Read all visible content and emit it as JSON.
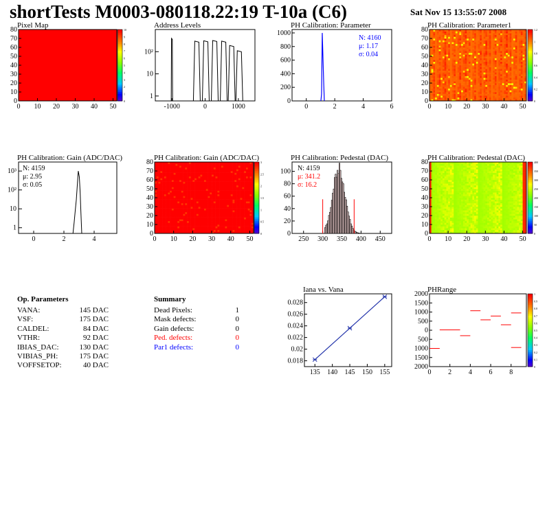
{
  "header": {
    "title": "shortTests M0003-080118.22:19 T-10a (C6)",
    "date": "Sat Nov 15 13:55:07 2008"
  },
  "colors": {
    "frame": "#000000",
    "red": "#ff0000",
    "blue": "#0000ff",
    "yellow_green": "#e6ff00",
    "line_blue": "#2233aa"
  },
  "chart_data": [
    {
      "id": "pixel_map",
      "type": "heatmap",
      "title": "Pixel Map",
      "xlim": [
        0,
        52
      ],
      "ylim": [
        0,
        80
      ],
      "xticks": [
        0,
        10,
        20,
        30,
        40,
        50
      ],
      "yticks": [
        0,
        10,
        20,
        30,
        40,
        50,
        60,
        70,
        80
      ],
      "uniform_value": 10,
      "zlim": [
        0,
        10
      ],
      "palette_ticks": [
        "10",
        "9",
        "8",
        "7",
        "6",
        "5",
        "4",
        "3",
        "2",
        "1",
        "0"
      ]
    },
    {
      "id": "address_levels",
      "type": "line",
      "title": "Address Levels",
      "log_y": true,
      "xlim": [
        -1500,
        1500
      ],
      "xticks": [
        -1000,
        0,
        1000
      ],
      "xtick_labels": [
        "-1000",
        "0",
        "1000"
      ],
      "ytick_labels": [
        "1",
        "10",
        "10²"
      ],
      "peaks": [
        {
          "x": -1000,
          "y": 400
        },
        {
          "x": -250,
          "y": 300
        },
        {
          "x": 20,
          "y": 310
        },
        {
          "x": 290,
          "y": 320
        },
        {
          "x": 560,
          "y": 300
        },
        {
          "x": 800,
          "y": 190
        },
        {
          "x": 1030,
          "y": 110
        }
      ]
    },
    {
      "id": "ph_cal_param",
      "type": "line",
      "title": "PH Calibration: Parameter",
      "xlim": [
        -1,
        6
      ],
      "ylim": [
        0,
        1050
      ],
      "xticks": [
        0,
        2,
        4,
        6
      ],
      "yticks": [
        0,
        200,
        400,
        600,
        800,
        1000
      ],
      "stats": {
        "n": "N: 4160",
        "mean": "μ: 1.17",
        "sigma": "σ: 0.04"
      },
      "peak": {
        "x": 1.17,
        "y": 1000
      }
    },
    {
      "id": "ph_cal_param1",
      "type": "heatmap",
      "title": "PH Calibration: Parameter1",
      "xlim": [
        0,
        52
      ],
      "ylim": [
        0,
        80
      ],
      "xticks": [
        0,
        10,
        20,
        30,
        40,
        50
      ],
      "yticks": [
        0,
        10,
        20,
        30,
        40,
        50,
        60,
        70,
        80
      ],
      "palette_ticks": [
        "1.2",
        "1",
        "0.8",
        "0.6",
        "0.4",
        "0.2",
        "0"
      ]
    },
    {
      "id": "ph_cal_gain_hist",
      "type": "line",
      "title": "PH Calibration: Gain (ADC/DAC)",
      "log_y": true,
      "xlim": [
        -1,
        5.5
      ],
      "xticks": [
        0,
        2,
        4
      ],
      "ytick_labels": [
        "1",
        "10",
        "10²",
        "10³"
      ],
      "stats": {
        "n": "N: 4159",
        "mean": "μ: 2.95",
        "sigma": "σ: 0.05"
      },
      "peak": {
        "x": 2.95,
        "y": 1000
      }
    },
    {
      "id": "ph_cal_gain_map",
      "type": "heatmap",
      "title": "PH Calibration: Gain (ADC/DAC)",
      "xlim": [
        0,
        52
      ],
      "ylim": [
        0,
        80
      ],
      "xticks": [
        0,
        10,
        20,
        30,
        40,
        50
      ],
      "yticks": [
        0,
        10,
        20,
        30,
        40,
        50,
        60,
        70,
        80
      ],
      "palette_ticks": [
        "3",
        "2.5",
        "2",
        "1.5",
        "1",
        "0.5",
        "0"
      ]
    },
    {
      "id": "ph_cal_pedestal_hist",
      "type": "bar",
      "title": "PH Calibration: Pedestal (DAC)",
      "xlim": [
        220,
        480
      ],
      "ylim": [
        0,
        115
      ],
      "xticks": [
        250,
        300,
        350,
        400,
        450
      ],
      "yticks": [
        0,
        20,
        40,
        60,
        80,
        100
      ],
      "stats": {
        "n": "N: 4159",
        "mean": "μ: 341.2",
        "sigma": "σ: 16.2"
      },
      "cut_lines": [
        300,
        382
      ],
      "mean": 341.2,
      "sigma": 16.2,
      "peak_y": 105
    },
    {
      "id": "ph_cal_pedestal_map",
      "type": "heatmap",
      "title": "PH Calibration: Pedestal (DAC)",
      "xlim": [
        0,
        52
      ],
      "ylim": [
        0,
        80
      ],
      "xticks": [
        0,
        10,
        20,
        30,
        40,
        50
      ],
      "yticks": [
        0,
        10,
        20,
        30,
        40,
        50,
        60,
        70,
        80
      ],
      "palette_ticks": [
        "400",
        "350",
        "300",
        "250",
        "200",
        "150",
        "100",
        "50",
        "0"
      ]
    },
    {
      "id": "iana_vs_vana",
      "type": "line",
      "title": "Iana vs. Vana",
      "xlim": [
        132,
        157
      ],
      "ylim": [
        0.017,
        0.0295
      ],
      "xticks": [
        135,
        140,
        145,
        150,
        155
      ],
      "yticks": [
        0.018,
        0.02,
        0.022,
        0.024,
        0.026,
        0.028
      ],
      "x": [
        135,
        145,
        155
      ],
      "y": [
        0.0182,
        0.0236,
        0.029
      ]
    },
    {
      "id": "phrange",
      "type": "line",
      "title": "PHRange",
      "xlim": [
        0,
        9.5
      ],
      "ylim": [
        -2000,
        2000
      ],
      "xticks": [
        0,
        2,
        4,
        6,
        8
      ],
      "yticks": [
        -2000,
        -1500,
        -1000,
        -500,
        0,
        500,
        1000,
        1500,
        2000
      ],
      "ytick_labels": [
        "2000",
        "1500",
        "1000",
        "500",
        "0",
        "500",
        "1000",
        "1500",
        "2000"
      ],
      "segments": [
        {
          "x0": 0,
          "x1": 1,
          "y": -1000
        },
        {
          "x0": 1,
          "x1": 3,
          "y": 20
        },
        {
          "x0": 3,
          "x1": 4,
          "y": -300
        },
        {
          "x0": 4,
          "x1": 5,
          "y": 1070
        },
        {
          "x0": 5,
          "x1": 6,
          "y": 570
        },
        {
          "x0": 6,
          "x1": 7,
          "y": 780
        },
        {
          "x0": 7,
          "x1": 8,
          "y": 300
        },
        {
          "x0": 8,
          "x1": 9,
          "y": 950
        },
        {
          "x0": 8,
          "x1": 9,
          "y": -950
        }
      ],
      "palette_ticks": [
        "1",
        "0.9",
        "0.8",
        "0.7",
        "0.6",
        "0.5",
        "0.4",
        "0.3",
        "0.2",
        "0.1",
        "0"
      ]
    }
  ],
  "op_params": {
    "title": "Op. Parameters",
    "rows": [
      {
        "name": "VANA:",
        "value": "145 DAC"
      },
      {
        "name": "VSF:",
        "value": "175 DAC"
      },
      {
        "name": "CALDEL:",
        "value": "84 DAC"
      },
      {
        "name": "VTHR:",
        "value": "92 DAC"
      },
      {
        "name": "IBIAS_DAC:",
        "value": "130 DAC"
      },
      {
        "name": "VIBIAS_PH:",
        "value": "175 DAC"
      },
      {
        "name": "VOFFSETOP:",
        "value": "40 DAC"
      }
    ]
  },
  "summary": {
    "title": "Summary",
    "rows": [
      {
        "name": "Dead Pixels:",
        "value": "1",
        "color": "#000000"
      },
      {
        "name": "Mask defects:",
        "value": "0",
        "color": "#000000"
      },
      {
        "name": "Gain defects:",
        "value": "0",
        "color": "#000000"
      },
      {
        "name": "Ped. defects:",
        "value": "0",
        "color": "#ff0000"
      },
      {
        "name": "Par1 defects:",
        "value": "0",
        "color": "#0000ff"
      }
    ]
  }
}
